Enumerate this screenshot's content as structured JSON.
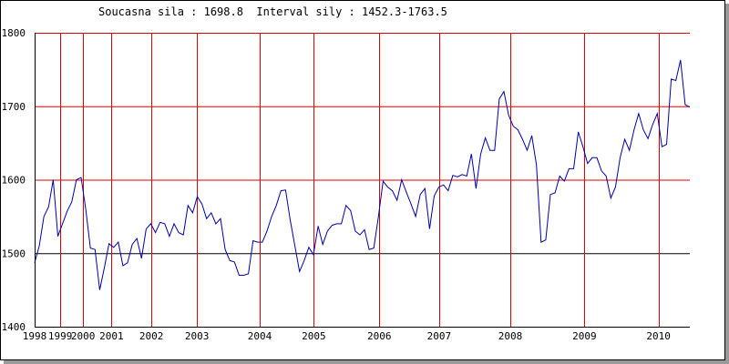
{
  "chart_data": {
    "type": "line",
    "title": "Soucasna sila : 1698.8  Interval sily : 1452.3-1763.5",
    "xlabel": "",
    "ylabel": "",
    "ylim": [
      1400,
      1800
    ],
    "xlim": [
      1998.5,
      2010.0
    ],
    "y_ticks": [
      "1400",
      "1500",
      "1600",
      "1700",
      "1800"
    ],
    "x_tick_labels": [
      {
        "label": "1998",
        "x": 1998.5
      },
      {
        "label": "1999",
        "x": 1998.95
      },
      {
        "label": "2000",
        "x": 1999.35
      },
      {
        "label": "2001",
        "x": 1999.85
      },
      {
        "label": "2002",
        "x": 2000.55
      },
      {
        "label": "2003",
        "x": 2001.35
      },
      {
        "label": "2004",
        "x": 2002.45
      },
      {
        "label": "2005",
        "x": 2003.4
      },
      {
        "label": "2006",
        "x": 2004.55
      },
      {
        "label": "2007",
        "x": 2005.6
      },
      {
        "label": "2008",
        "x": 2006.85
      },
      {
        "label": "2009",
        "x": 2008.15
      },
      {
        "label": "2010",
        "x": 2009.45
      }
    ],
    "vertical_gridlines": [
      1998.95,
      1999.35,
      1999.85,
      2000.55,
      2001.35,
      2002.45,
      2003.4,
      2004.55,
      2005.6,
      2006.85,
      2008.15,
      2009.45
    ],
    "horizontal_gridlines": [
      1500,
      1600,
      1700,
      1800
    ],
    "reference_line": 1500,
    "colors": {
      "line": "#0000aa",
      "grid": "#dd0000",
      "reference": "#000000",
      "axis": "#000000"
    },
    "series": [
      {
        "values": [
          1487,
          1510,
          1550,
          1563,
          1600,
          1523,
          1540,
          1557,
          1570,
          1600,
          1603,
          1560,
          1507,
          1505,
          1450,
          1480,
          1513,
          1508,
          1515,
          1483,
          1487,
          1512,
          1520,
          1493,
          1533,
          1540,
          1528,
          1542,
          1540,
          1523,
          1540,
          1528,
          1525,
          1565,
          1555,
          1577,
          1567,
          1547,
          1555,
          1540,
          1547,
          1505,
          1490,
          1488,
          1470,
          1470,
          1472,
          1517,
          1515,
          1515,
          1530,
          1550,
          1565,
          1585,
          1586,
          1545,
          1510,
          1475,
          1490,
          1508,
          1498,
          1537,
          1512,
          1530,
          1538,
          1540,
          1540,
          1565,
          1558,
          1530,
          1525,
          1532,
          1505,
          1507,
          1550,
          1598,
          1590,
          1585,
          1572,
          1600,
          1583,
          1567,
          1550,
          1580,
          1588,
          1533,
          1578,
          1590,
          1593,
          1585,
          1606,
          1604,
          1607,
          1605,
          1635,
          1588,
          1635,
          1657,
          1640,
          1640,
          1710,
          1720,
          1688,
          1673,
          1668,
          1655,
          1640,
          1660,
          1620,
          1515,
          1518,
          1580,
          1582,
          1605,
          1598,
          1615,
          1615,
          1665,
          1645,
          1622,
          1630,
          1630,
          1612,
          1605,
          1575,
          1590,
          1630,
          1655,
          1640,
          1668,
          1690,
          1668,
          1656,
          1675,
          1690,
          1645,
          1648,
          1737,
          1735,
          1763,
          1702,
          1699
        ]
      }
    ]
  }
}
